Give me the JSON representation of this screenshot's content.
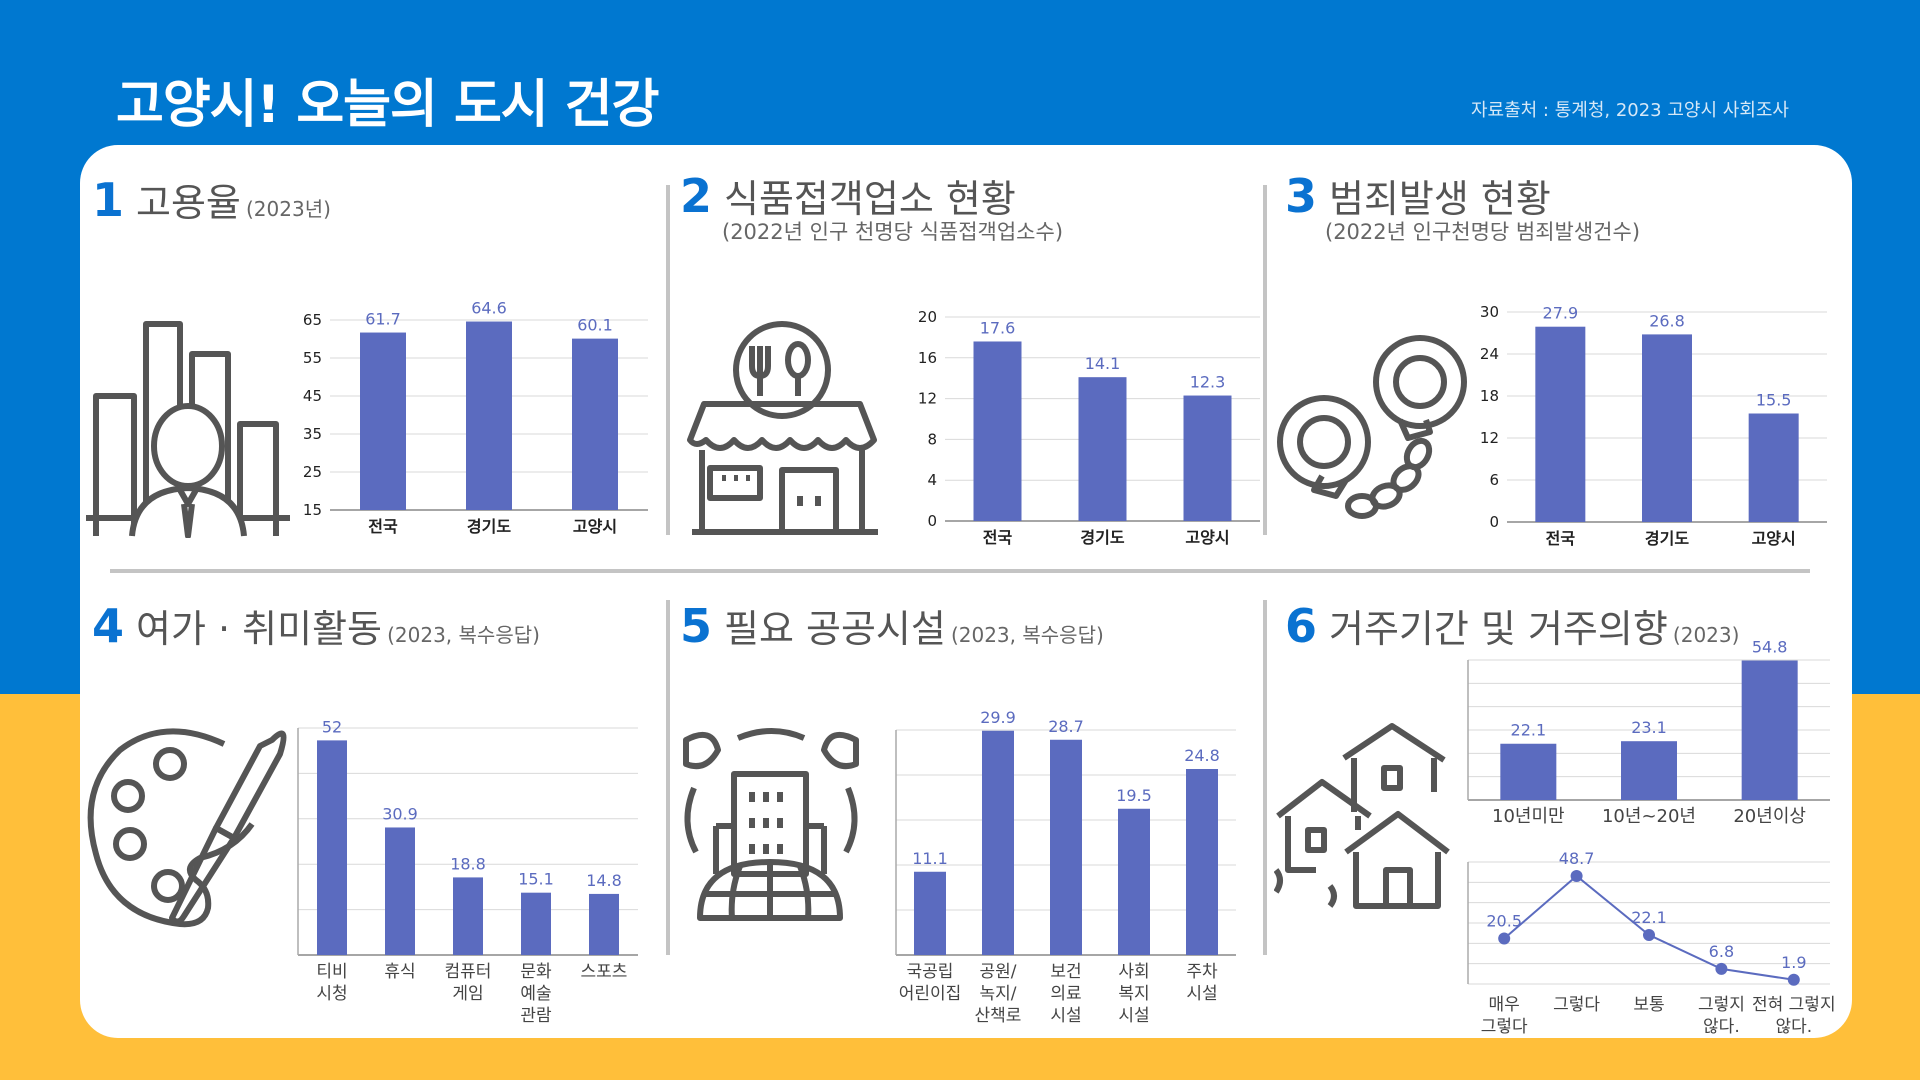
{
  "header": {
    "title": "고양시! 오늘의 도시 건강",
    "source": "자료출처 : 통계청, 2023 고양시 사회조사"
  },
  "colors": {
    "bar": "#5b6bbf",
    "label": "#5b6bbf",
    "accent": "#0a72d1",
    "top_bg": "#0078d0",
    "bottom_bg": "#ffbf3a",
    "icon": "#555555"
  },
  "sections": [
    {
      "num": "1",
      "title": "고용율",
      "sub": "(2023년)",
      "subline": "",
      "icon": "city-person-icon"
    },
    {
      "num": "2",
      "title": "식품접객업소 현황",
      "sub": "",
      "subline": "(2022년 인구 천명당  식품접객업소수)",
      "icon": "restaurant-icon"
    },
    {
      "num": "3",
      "title": "범죄발생 현황",
      "sub": "",
      "subline": "(2022년 인구천명당 범죄발생건수)",
      "icon": "handcuffs-icon"
    },
    {
      "num": "4",
      "title": "여가  · 취미활동",
      "sub": "(2023, 복수응답)",
      "subline": "",
      "icon": "paint-palette-icon"
    },
    {
      "num": "5",
      "title": "필요 공공시설",
      "sub": "(2023, 복수응답)",
      "subline": "",
      "icon": "eco-building-icon"
    },
    {
      "num": "6",
      "title": "거주기간 및 거주의향",
      "sub": "(2023)",
      "subline": "",
      "icon": "houses-icon"
    }
  ],
  "chart_data": [
    {
      "type": "bar",
      "title": "고용율",
      "categories": [
        "전국",
        "경기도",
        "고양시"
      ],
      "values": [
        61.7,
        64.6,
        60.1
      ],
      "ylim": [
        15,
        65
      ],
      "yticks": [
        15,
        25,
        35,
        45,
        55,
        65
      ],
      "grid": true
    },
    {
      "type": "bar",
      "title": "식품접객업소 현황",
      "categories": [
        "전국",
        "경기도",
        "고양시"
      ],
      "values": [
        17.6,
        14.1,
        12.3
      ],
      "ylim": [
        0,
        20
      ],
      "yticks": [
        0,
        4,
        8,
        12,
        16,
        20
      ],
      "grid": true
    },
    {
      "type": "bar",
      "title": "범죄발생 현황",
      "categories": [
        "전국",
        "경기도",
        "고양시"
      ],
      "values": [
        27.9,
        26.8,
        15.5
      ],
      "ylim": [
        0,
        30
      ],
      "yticks": [
        0,
        6,
        12,
        18,
        24,
        30
      ],
      "grid": true
    },
    {
      "type": "bar",
      "title": "여가 · 취미활동",
      "categories": [
        [
          "티비",
          "시청"
        ],
        [
          "휴식"
        ],
        [
          "컴퓨터",
          "게임"
        ],
        [
          "문화",
          "예술",
          "관람"
        ],
        [
          "스포츠"
        ]
      ],
      "values": [
        52,
        30.9,
        18.8,
        15.1,
        14.8
      ],
      "ylim": [
        0,
        55
      ],
      "grid": true
    },
    {
      "type": "bar",
      "title": "필요 공공시설",
      "categories": [
        [
          "국공립",
          "어린이집"
        ],
        [
          "공원/",
          "녹지/",
          "산책로"
        ],
        [
          "보건",
          "의료",
          "시설"
        ],
        [
          "사회",
          "복지",
          "시설"
        ],
        [
          "주차",
          "시설"
        ]
      ],
      "values": [
        11.1,
        29.9,
        28.7,
        19.5,
        24.8
      ],
      "ylim": [
        0,
        30
      ],
      "grid": true
    },
    {
      "type": "bar",
      "title": "거주기간",
      "categories": [
        "10년미만",
        "10년~20년",
        "20년이상"
      ],
      "values": [
        22.1,
        23.1,
        54.8
      ],
      "ylim": [
        0,
        55
      ],
      "grid": true
    },
    {
      "type": "line",
      "title": "거주의향",
      "categories": [
        [
          "매우",
          "그렇다"
        ],
        [
          "그렇다"
        ],
        [
          "보통"
        ],
        [
          "그렇지",
          "않다."
        ],
        [
          "전혀 그렇지",
          "않다."
        ]
      ],
      "values": [
        20.5,
        48.7,
        22.1,
        6.8,
        1.9
      ],
      "ylim": [
        0,
        55
      ],
      "grid": true
    }
  ]
}
